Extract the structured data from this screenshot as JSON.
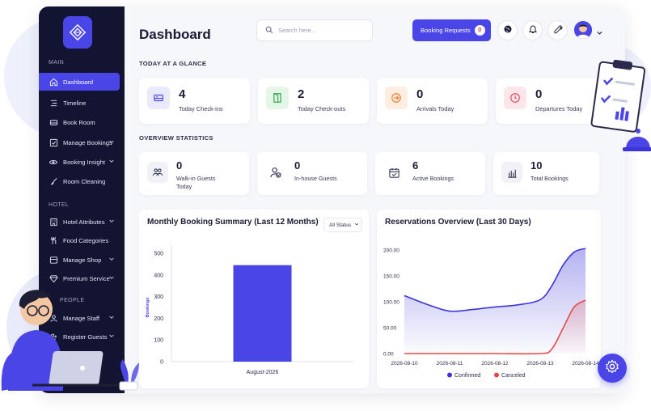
{
  "sidebar": {
    "sections": {
      "main": "MAIN",
      "hotel": "HOTEL",
      "people": "PEOPLE"
    },
    "items": [
      {
        "label": "Dashboard",
        "icon": "home-icon",
        "active": true,
        "chevron": false
      },
      {
        "label": "Timeline",
        "icon": "timeline-icon",
        "active": false,
        "chevron": false
      },
      {
        "label": "Book Room",
        "icon": "bed-icon",
        "active": false,
        "chevron": false
      },
      {
        "label": "Manage Bookings",
        "icon": "checkbox-icon",
        "active": false,
        "chevron": true
      },
      {
        "label": "Booking Insight",
        "icon": "eye-icon",
        "active": false,
        "chevron": true
      },
      {
        "label": "Room Cleaning",
        "icon": "broom-icon",
        "active": false,
        "chevron": false
      },
      {
        "label": "Hotel Attributes",
        "icon": "building-icon",
        "active": false,
        "chevron": true
      },
      {
        "label": "Food Categories",
        "icon": "fork-knife-icon",
        "active": false,
        "chevron": false
      },
      {
        "label": "Manage Shop",
        "icon": "shop-icon",
        "active": false,
        "chevron": true
      },
      {
        "label": "Premium Service",
        "icon": "diamond-icon",
        "active": false,
        "chevron": true
      },
      {
        "label": "Manage Staff",
        "icon": "staff-icon",
        "active": false,
        "chevron": true
      },
      {
        "label": "Register Guests",
        "icon": "guests-icon",
        "active": false,
        "chevron": true
      }
    ]
  },
  "header": {
    "title": "Dashboard",
    "search_placeholder": "Search here...",
    "booking_requests_label": "Booking Requests",
    "booking_requests_count": "0"
  },
  "glance": {
    "section_title": "TODAY AT A GLANCE",
    "cards": [
      {
        "value": "4",
        "label": "Today Check-ins",
        "icon": "bed-icon",
        "bg": "#ebeafc",
        "fg": "#4a45e6"
      },
      {
        "value": "2",
        "label": "Today Check-outs",
        "icon": "door-icon",
        "bg": "#e3f6e8",
        "fg": "#2ea44f"
      },
      {
        "value": "0",
        "label": "Arrivals Today",
        "icon": "arrival-icon",
        "bg": "#fdeee1",
        "fg": "#ee7d2b"
      },
      {
        "value": "0",
        "label": "Departures Today",
        "icon": "clock-icon",
        "bg": "#fce6ea",
        "fg": "#e2455f"
      }
    ]
  },
  "overview": {
    "section_title": "OVERVIEW STATISTICS",
    "cards": [
      {
        "value": "0",
        "label": "Walk-in Guests Today",
        "icon": "walkin-guests-icon"
      },
      {
        "value": "0",
        "label": "In-house Guests",
        "icon": "inhouse-guest-icon"
      },
      {
        "value": "6",
        "label": "Active Bookings",
        "icon": "calendar-check-icon"
      },
      {
        "value": "10",
        "label": "Total Bookings",
        "icon": "bar-chart-icon"
      }
    ]
  },
  "monthly_chart": {
    "title": "Monthly Booking Summary (Last 12 Months)",
    "filter_label": "All Status"
  },
  "reservations_chart": {
    "title": "Reservations Overview (Last 30 Days)"
  },
  "colors": {
    "accent": "#4a45e6",
    "sidebar": "#131432",
    "confirmed": "#3b35d9",
    "canceled": "#e24b4b"
  },
  "chart_data": [
    {
      "type": "bar",
      "categories": [
        "August-2026"
      ],
      "values": [
        445
      ],
      "title": "Monthly Booking Summary (Last 12 Months)",
      "xlabel": "",
      "ylabel": "Bookings",
      "ylim": [
        0,
        500
      ],
      "yticks": [
        "0",
        "100",
        "200",
        "300",
        "400",
        "500"
      ],
      "color": "#4a45e6"
    },
    {
      "type": "area",
      "x": [
        "2026-08-10",
        "2026-08-11",
        "2026-08-12",
        "2026-08-13",
        "2026-08-14"
      ],
      "x_numeric": [
        0,
        1,
        2,
        3,
        4
      ],
      "series": [
        {
          "name": "Confirmed",
          "x": [
            0,
            0.5,
            1,
            1.5,
            2,
            2.5,
            3,
            3.25,
            3.5,
            3.75,
            4
          ],
          "values": [
            112,
            95,
            82,
            85,
            90,
            94,
            104,
            130,
            170,
            196,
            203
          ],
          "color": "#3b35d9"
        },
        {
          "name": "Canceled",
          "x": [
            0,
            1,
            2,
            3,
            3.25,
            3.5,
            3.75,
            4
          ],
          "values": [
            0,
            0,
            0,
            0,
            8,
            48,
            90,
            103
          ],
          "color": "#e24b4b"
        }
      ],
      "title": "Reservations Overview (Last 30 Days)",
      "ylim": [
        0,
        200
      ],
      "yticks": [
        "0.00",
        "50.00",
        "100.00",
        "150.00",
        "200.00"
      ],
      "legend": "bottom"
    }
  ]
}
